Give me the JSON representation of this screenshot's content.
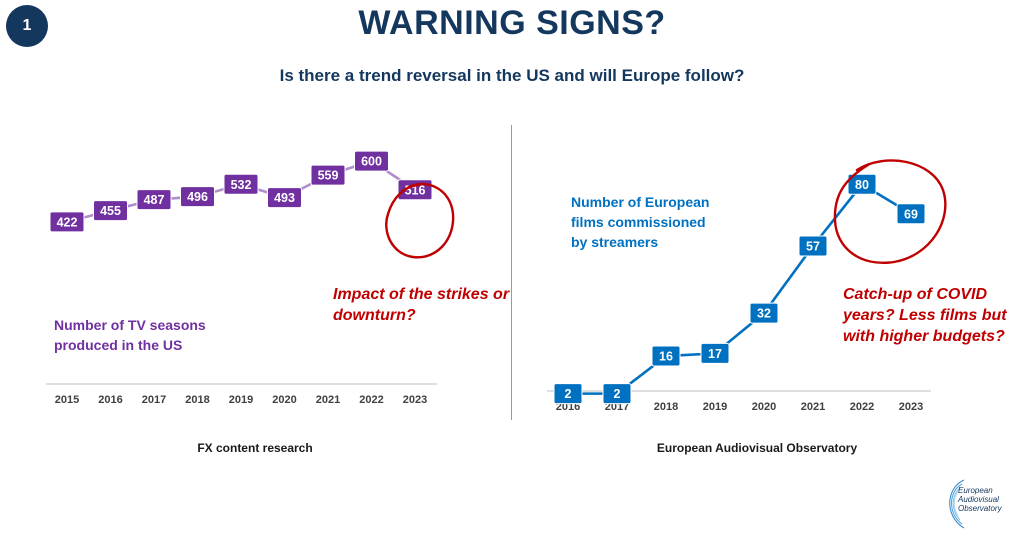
{
  "slide": {
    "number": "1",
    "title": "WARNING SIGNS?",
    "subtitle": "Is there a trend reversal in the US and will Europe follow?"
  },
  "colors": {
    "navy": "#14375e",
    "purple": "#7030a0",
    "blue": "#0070c0",
    "red": "#c00000"
  },
  "logo": {
    "icon": "eao-logo-icon",
    "lines": [
      "European",
      "Audiovisual",
      "Observatory"
    ]
  },
  "chart_data": [
    {
      "type": "line",
      "x": [
        "2015",
        "2016",
        "2017",
        "2018",
        "2019",
        "2020",
        "2021",
        "2022",
        "2023"
      ],
      "series": [
        {
          "values": [
            422,
            455,
            487,
            496,
            532,
            493,
            559,
            600,
            516
          ]
        }
      ],
      "ylim": [
        0,
        650
      ],
      "label_lines": [
        "Number of TV seasons",
        "produced in the US"
      ],
      "annotation_lines": [
        "Impact of the strikes or",
        "downturn?"
      ],
      "source": "FX content research",
      "highlight": "2023"
    },
    {
      "type": "line",
      "x": [
        "2016",
        "2017",
        "2018",
        "2019",
        "2020",
        "2021",
        "2022",
        "2023"
      ],
      "series": [
        {
          "values": [
            2,
            2,
            16,
            17,
            32,
            57,
            80,
            69
          ]
        }
      ],
      "ylim": [
        0,
        95
      ],
      "label_lines": [
        "Number of European",
        "films commissioned",
        "by streamers"
      ],
      "annotation_lines": [
        "Catch-up of COVID",
        "years? Less films but",
        "with higher budgets?"
      ],
      "source": "European Audiovisual Observatory",
      "highlight": [
        "2022",
        "2023"
      ]
    }
  ]
}
